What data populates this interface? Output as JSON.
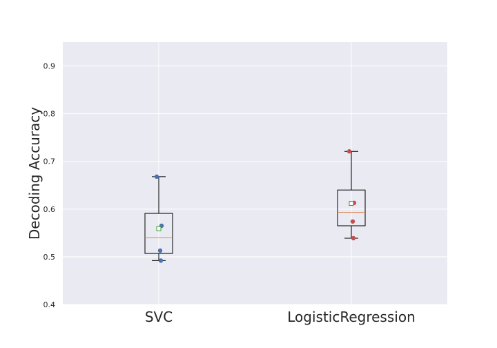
{
  "chart_data": {
    "type": "box",
    "title": "",
    "xlabel": "",
    "ylabel": "Decoding Accuracy",
    "ylim": [
      0.4,
      0.95
    ],
    "yticks": [
      0.4,
      0.5,
      0.6,
      0.7,
      0.8,
      0.9
    ],
    "ytick_labels": [
      "0.4",
      "0.5",
      "0.6",
      "0.7",
      "0.8",
      "0.9"
    ],
    "grid": true,
    "categories": [
      "SVC",
      "LogisticRegression"
    ],
    "boxes": [
      {
        "category": "SVC",
        "whisker_low": 0.492,
        "q1": 0.507,
        "median": 0.54,
        "q3": 0.591,
        "whisker_high": 0.668,
        "mean": 0.559,
        "points": [
          0.668,
          0.565,
          0.513,
          0.492
        ],
        "point_color": "#4c72b0"
      },
      {
        "category": "LogisticRegression",
        "whisker_low": 0.539,
        "q1": 0.565,
        "median": 0.593,
        "q3": 0.64,
        "whisker_high": 0.721,
        "mean": 0.612,
        "points": [
          0.721,
          0.613,
          0.574,
          0.539
        ],
        "point_color": "#c44e52"
      }
    ],
    "colors": {
      "plot_background": "#eaeaf2",
      "grid": "#ffffff",
      "box": "#000000",
      "median": "#dd8452",
      "mean_marker": "#2ca02c"
    }
  }
}
